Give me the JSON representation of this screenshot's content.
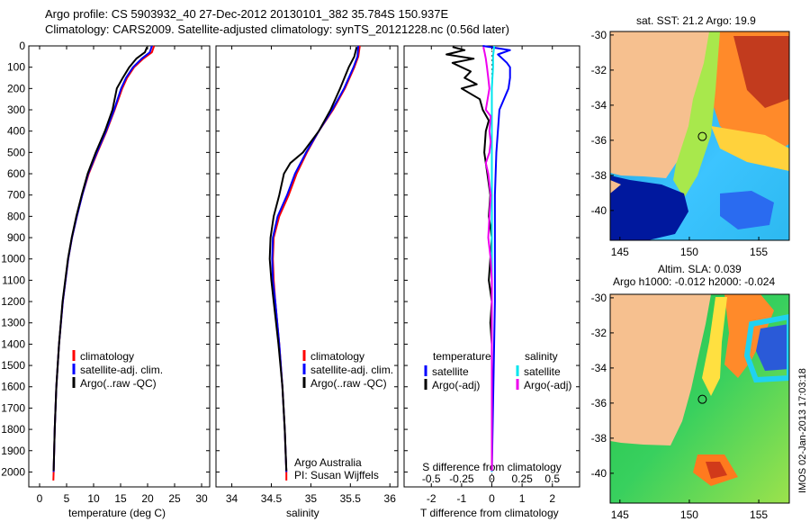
{
  "header": {
    "line1": "Argo profile: CS 5903932_40 27-Dec-2012 20130101_382 35.784S 150.937E",
    "line2": "Climatology: CARS2009. Satellite-adjusted climatology: synTS_20121228.nc (0.56d later)"
  },
  "colors": {
    "climatology": "#ff0000",
    "satellite": "#0000ff",
    "argo": "#000000",
    "salinity_satellite": "#00e5ee",
    "salinity_argo": "#ee00ee",
    "land": "#f6c08f"
  },
  "panels": {
    "temperature": {
      "xlabel": "temperature (deg C)",
      "legend": [
        "climatology",
        "satellite-adj. clim.",
        "Argo(..raw -QC)"
      ]
    },
    "salinity": {
      "xlabel": "salinity",
      "legend": [
        "climatology",
        "satellite-adj. clim.",
        "Argo(..raw -QC)"
      ],
      "note1": "Argo Australia",
      "note2": "PI: Susan Wijffels"
    },
    "difference": {
      "xlabel": "T difference from climatology",
      "top_axis_label": "S difference from climatology",
      "legend_temp_title": "temperature",
      "legend_sal_title": "salinity",
      "legend_temp": [
        "satellite",
        "Argo(-adj)"
      ],
      "legend_sal": [
        "satellite",
        "Argo(-adj)"
      ]
    }
  },
  "maps": {
    "sst_title": "sat. SST: 21.2 Argo: 19.9",
    "sla_title1": "Altim. SLA: 0.039",
    "sla_title2": "Argo h1000: -0.012 h2000: -0.024",
    "lon_ticks": [
      "145",
      "150",
      "155"
    ],
    "lat_ticks": [
      "-30",
      "-32",
      "-34",
      "-36",
      "-38",
      "-40"
    ],
    "xlim": [
      144.3,
      157.2
    ],
    "ylim": [
      -41.7,
      -29.8
    ],
    "float_position": {
      "lon": 150.937,
      "lat": -35.784
    }
  },
  "footer_stamp": "IMOS 02-Jan-2013 17:03:18",
  "chart_data": [
    {
      "type": "line",
      "name": "temperature profile",
      "xlabel": "temperature (deg C)",
      "ylabel": "",
      "xlim": [
        -2,
        31.5
      ],
      "ylim": [
        2070,
        0
      ],
      "xticks": [
        0,
        5,
        10,
        15,
        20,
        25,
        30
      ],
      "yticks": [
        0,
        100,
        200,
        300,
        400,
        500,
        600,
        700,
        800,
        900,
        1000,
        1100,
        1200,
        1300,
        1400,
        1500,
        1600,
        1700,
        1800,
        1900,
        2000
      ],
      "legend_placement": "lower-right",
      "series": [
        {
          "name": "climatology",
          "color": "#ff0000",
          "depth": [
            0,
            30,
            60,
            100,
            150,
            200,
            300,
            400,
            500,
            600,
            700,
            800,
            900,
            1000,
            1200,
            1400,
            1600,
            1800,
            2000,
            2040
          ],
          "values": [
            21.2,
            20.8,
            19.2,
            17.5,
            16.2,
            15.3,
            13.9,
            12.4,
            10.7,
            9.1,
            7.9,
            6.9,
            6.0,
            5.3,
            4.3,
            3.6,
            3.1,
            2.8,
            2.6,
            2.55
          ]
        },
        {
          "name": "satellite-adj. clim.",
          "color": "#0000ff",
          "depth": [
            0,
            30,
            60,
            100,
            150,
            200,
            300,
            400,
            500,
            600,
            700,
            800,
            900,
            1000,
            1200,
            1400,
            1600,
            1800,
            2000
          ],
          "values": [
            20.8,
            20.4,
            18.9,
            17.3,
            16.0,
            15.1,
            13.8,
            12.3,
            10.6,
            9.0,
            7.9,
            6.9,
            6.0,
            5.3,
            4.3,
            3.6,
            3.1,
            2.8,
            2.6
          ]
        },
        {
          "name": "Argo(..raw -QC)",
          "color": "#000000",
          "depth": [
            5,
            30,
            60,
            100,
            150,
            200,
            300,
            400,
            500,
            600,
            700,
            800,
            900,
            1000,
            1200,
            1400,
            1600,
            1800,
            1995
          ],
          "values": [
            19.9,
            19.5,
            17.9,
            16.6,
            15.4,
            14.3,
            13.5,
            12.1,
            10.4,
            8.9,
            7.8,
            6.8,
            5.95,
            5.25,
            4.25,
            3.6,
            3.1,
            2.8,
            2.6
          ]
        }
      ]
    },
    {
      "type": "line",
      "name": "salinity profile",
      "xlabel": "salinity",
      "ylabel": "",
      "xlim": [
        33.8,
        36.1
      ],
      "ylim": [
        2070,
        0
      ],
      "xticks": [
        34,
        34.5,
        35,
        35.5,
        36
      ],
      "legend_placement": "lower-right",
      "series": [
        {
          "name": "climatology",
          "color": "#ff0000",
          "depth": [
            0,
            50,
            100,
            200,
            300,
            400,
            500,
            600,
            700,
            800,
            900,
            1000,
            1100,
            1200,
            1400,
            1600,
            1800,
            2000,
            2040
          ],
          "values": [
            35.62,
            35.6,
            35.55,
            35.43,
            35.28,
            35.1,
            34.95,
            34.82,
            34.72,
            34.6,
            34.53,
            34.52,
            34.53,
            34.55,
            34.6,
            34.64,
            34.67,
            34.69,
            34.69
          ]
        },
        {
          "name": "satellite-adj. clim.",
          "color": "#0000ff",
          "depth": [
            0,
            50,
            100,
            200,
            300,
            400,
            500,
            600,
            700,
            800,
            900,
            1000,
            1100,
            1200,
            1400,
            1600,
            1800,
            2000
          ],
          "values": [
            35.6,
            35.59,
            35.54,
            35.42,
            35.27,
            35.1,
            34.94,
            34.8,
            34.7,
            34.58,
            34.52,
            34.51,
            34.52,
            34.55,
            34.6,
            34.64,
            34.67,
            34.69
          ]
        },
        {
          "name": "Argo(..raw -QC)",
          "color": "#000000",
          "depth": [
            5,
            50,
            100,
            200,
            300,
            400,
            500,
            550,
            600,
            700,
            800,
            900,
            1000,
            1100,
            1200,
            1400,
            1600,
            1800,
            1995
          ],
          "values": [
            35.58,
            35.55,
            35.48,
            35.37,
            35.25,
            35.1,
            34.9,
            34.74,
            34.66,
            34.6,
            34.53,
            34.49,
            34.48,
            34.5,
            34.53,
            34.59,
            34.64,
            34.67,
            34.69
          ]
        }
      ]
    },
    {
      "type": "line",
      "name": "difference from climatology",
      "xlabel": "T difference from climatology",
      "top_xlabel": "S difference from climatology",
      "xlim": [
        -2.9,
        2.9
      ],
      "top_xlim": [
        -0.725,
        0.725
      ],
      "ylim": [
        2070,
        0
      ],
      "xticks": [
        -2,
        -1,
        0,
        1,
        2
      ],
      "top_xticks": [
        -0.5,
        -0.25,
        0,
        0.25,
        0.5
      ],
      "legend_placement": "middle",
      "series": [
        {
          "name": "temperature satellite",
          "color": "#0000ff",
          "depth": [
            0,
            20,
            40,
            60,
            80,
            100,
            150,
            200,
            300,
            500,
            700,
            900,
            1200,
            1600,
            2000
          ],
          "values": [
            -0.3,
            0.6,
            0.2,
            0.35,
            0.5,
            0.6,
            0.6,
            0.55,
            0.25,
            0.15,
            0.1,
            0.1,
            0.1,
            0.05,
            0.0
          ]
        },
        {
          "name": "temperature Argo(-adj)",
          "color": "#000000",
          "depth": [
            5,
            20,
            40,
            60,
            80,
            100,
            120,
            150,
            180,
            200,
            250,
            300,
            350,
            400,
            500,
            600,
            700,
            800,
            900,
            1000,
            1100,
            1200,
            1300,
            1400,
            1600,
            1800,
            1995
          ],
          "values": [
            -1.3,
            -0.9,
            -1.5,
            -0.6,
            -1.3,
            -1.0,
            -0.7,
            -0.9,
            -0.5,
            -1.0,
            -0.4,
            -0.3,
            -0.1,
            -0.2,
            -0.25,
            -0.15,
            -0.05,
            -0.1,
            0.0,
            -0.05,
            -0.1,
            0.0,
            -0.05,
            0.0,
            0.0,
            0.0,
            0.0
          ]
        },
        {
          "name": "salinity satellite",
          "color": "#00e5ee",
          "depth": [
            0,
            50,
            100,
            200,
            400,
            600,
            800,
            1000,
            1500,
            2000
          ],
          "values": [
            0.02,
            0.01,
            0.01,
            0.0,
            0.0,
            0.0,
            0.0,
            0.0,
            0.0,
            0.0
          ]
        },
        {
          "name": "salinity Argo(-adj)",
          "color": "#ee00ee",
          "depth": [
            5,
            30,
            60,
            100,
            150,
            200,
            300,
            330,
            400,
            450,
            500,
            550,
            600,
            700,
            800,
            900,
            1000,
            1100,
            1200,
            1400,
            1600,
            1800,
            1995
          ],
          "values": [
            -0.07,
            -0.06,
            -0.05,
            -0.04,
            -0.03,
            -0.02,
            -0.05,
            -0.01,
            -0.02,
            -0.01,
            -0.02,
            -0.05,
            -0.03,
            -0.01,
            -0.02,
            -0.03,
            -0.01,
            0.0,
            0.0,
            0.0,
            0.0,
            0.0,
            0.0
          ]
        }
      ]
    }
  ]
}
